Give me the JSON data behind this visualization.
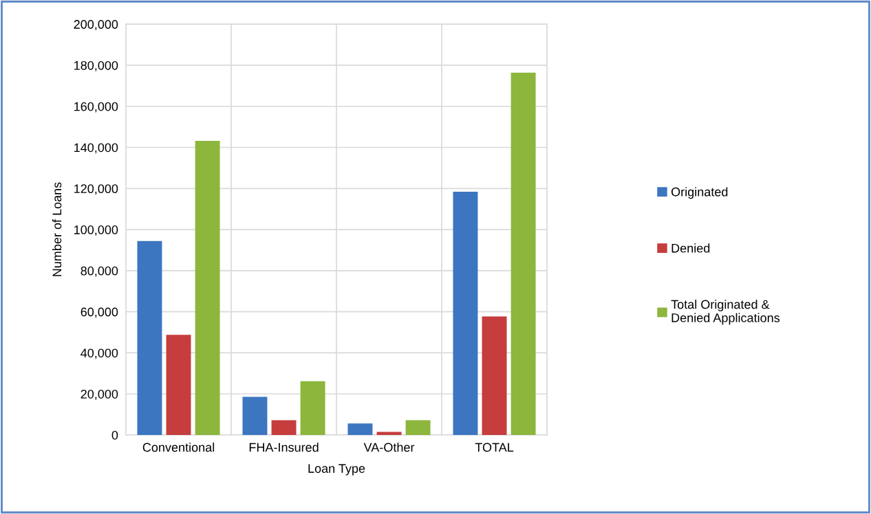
{
  "chart_data": {
    "type": "bar",
    "xlabel": "Loan Type",
    "ylabel": "Number of Loans",
    "categories": [
      "Conventional",
      "FHA-Insured",
      "VA-Other",
      "TOTAL"
    ],
    "series": [
      {
        "name": "Originated",
        "color": "#3c76c0",
        "values": [
          94400,
          18600,
          5600,
          118400
        ]
      },
      {
        "name": "Denied",
        "color": "#c63d3d",
        "values": [
          48800,
          7200,
          1500,
          57700
        ]
      },
      {
        "name": "Total Originated &\nDenied Applications",
        "color": "#8cb63c",
        "values": [
          143200,
          26200,
          7200,
          176400
        ]
      }
    ],
    "ylim": [
      0,
      200000
    ],
    "yticks": [
      0,
      {
        "value": 20000,
        "label": "20,000"
      },
      {
        "value": 40000,
        "label": "40,000"
      },
      {
        "value": 60000,
        "label": "60,000"
      },
      {
        "value": 80000,
        "label": "80,000"
      },
      {
        "value": 100000,
        "label": "100,000"
      },
      {
        "value": 120000,
        "label": "120,000"
      },
      {
        "value": 140000,
        "label": "140,000"
      },
      {
        "value": 160000,
        "label": "160,000"
      },
      {
        "value": 180000,
        "label": "180,000"
      },
      {
        "value": 200000,
        "label": "200,000"
      }
    ],
    "grid": true,
    "legend": "right"
  }
}
